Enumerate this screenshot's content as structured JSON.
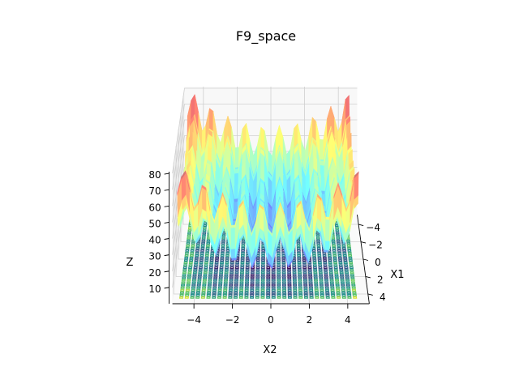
{
  "chart_data": {
    "type": "surface3d",
    "title": "F9_space",
    "xlabel": "X2",
    "ylabel": "X1",
    "zlabel": "Z",
    "x_ticks": [
      "−4",
      "−2",
      "0",
      "2",
      "4"
    ],
    "y_ticks": [
      "−4",
      "−2",
      "0",
      "2",
      "4"
    ],
    "z_ticks": [
      "10",
      "20",
      "30",
      "40",
      "50",
      "60",
      "70",
      "80"
    ],
    "xlim": [
      -5.12,
      5.12
    ],
    "ylim": [
      -5.12,
      5.12
    ],
    "zlim": [
      0,
      81
    ],
    "surface": "Rastrigin: Z = 20 + X1^2 + X2^2 - 10(cos 2πX1 + cos 2πX2)",
    "colormap_surface": "jet",
    "colormap_contour": "viridis",
    "contour_offset": "floor",
    "grid": true,
    "legend": "none"
  }
}
